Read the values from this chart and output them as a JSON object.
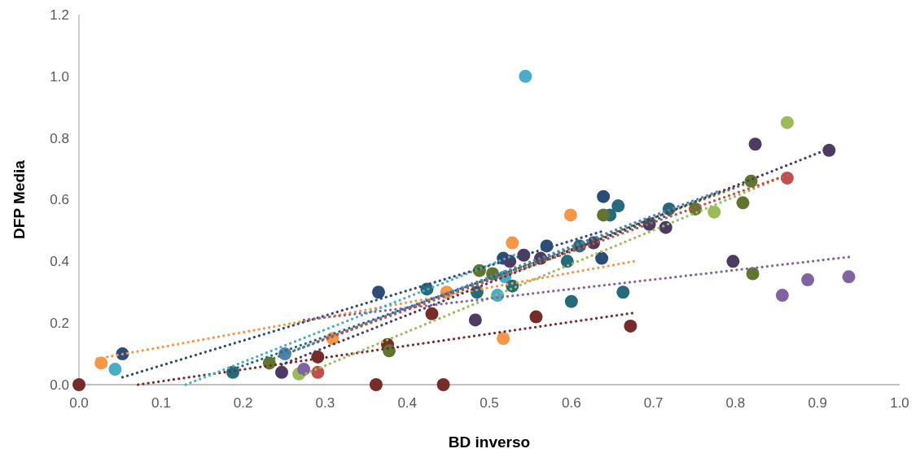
{
  "chart_data": {
    "type": "scatter",
    "xlabel": "BD inverso",
    "ylabel": "DFP Media",
    "marker": "circle",
    "grid": false,
    "xlim": [
      0,
      1
    ],
    "ylim": [
      0,
      1.2
    ],
    "xticks": [
      {
        "value": 0,
        "label": "0.0"
      },
      {
        "value": 0.1,
        "label": "0.1"
      },
      {
        "value": 0.2,
        "label": "0.2"
      },
      {
        "value": 0.3,
        "label": "0.3"
      },
      {
        "value": 0.4,
        "label": "0.4"
      },
      {
        "value": 0.5,
        "label": "0.5"
      },
      {
        "value": 0.6,
        "label": "0.6"
      },
      {
        "value": 0.7,
        "label": "0.7"
      },
      {
        "value": 0.8,
        "label": "0.8"
      },
      {
        "value": 0.9,
        "label": "0.9"
      },
      {
        "value": 1,
        "label": "1.0"
      }
    ],
    "yticks": [
      {
        "value": 0,
        "label": "0.0"
      },
      {
        "value": 0.2,
        "label": "0.2"
      },
      {
        "value": 0.4,
        "label": "0.4"
      },
      {
        "value": 0.6,
        "label": "0.6"
      },
      {
        "value": 0.8,
        "label": "0.8"
      },
      {
        "value": 1,
        "label": "1.0"
      },
      {
        "value": 1.2,
        "label": "1.2"
      }
    ],
    "series": [
      {
        "color": "#772c2a",
        "x": [
          0,
          0.291,
          0.362,
          0.376,
          0.43,
          0.444,
          0.557,
          0.672
        ],
        "values": [
          0,
          0.09,
          0,
          0.13,
          0.23,
          0,
          0.22,
          0.19
        ]
      },
      {
        "color": "#f79646",
        "x": [
          0.027,
          0.309,
          0.448,
          0.517,
          0.528,
          0.599
        ],
        "values": [
          0.07,
          0.15,
          0.3,
          0.15,
          0.46,
          0.55
        ]
      },
      {
        "color": "#4bacc6",
        "x": [
          0.044,
          0.51,
          0.519,
          0.544
        ],
        "values": [
          0.05,
          0.29,
          0.35,
          1.0
        ]
      },
      {
        "color": "#2c4d75",
        "x": [
          0.053,
          0.365,
          0.517,
          0.57,
          0.637,
          0.639
        ],
        "values": [
          0.1,
          0.3,
          0.41,
          0.45,
          0.41,
          0.61
        ]
      },
      {
        "color": "#276a7c",
        "x": [
          0.1875,
          0.424,
          0.485,
          0.528,
          0.595,
          0.6,
          0.61,
          0.647,
          0.657,
          0.663,
          0.719
        ],
        "values": [
          0.04,
          0.31,
          0.3,
          0.32,
          0.4,
          0.27,
          0.45,
          0.55,
          0.58,
          0.3,
          0.57
        ]
      },
      {
        "color": "#5f7530",
        "x": [
          0.232,
          0.378,
          0.488,
          0.504,
          0.639,
          0.751,
          0.809,
          0.819,
          0.821
        ],
        "values": [
          0.07,
          0.11,
          0.37,
          0.36,
          0.55,
          0.57,
          0.59,
          0.66,
          0.36
        ]
      },
      {
        "color": "#4d3b62",
        "x": [
          0.247,
          0.483,
          0.525,
          0.542,
          0.5625,
          0.627,
          0.695,
          0.715,
          0.797,
          0.824,
          0.914
        ],
        "values": [
          0.04,
          0.21,
          0.4,
          0.42,
          0.41,
          0.46,
          0.52,
          0.51,
          0.4,
          0.78,
          0.76
        ]
      },
      {
        "color": "#4f81bd",
        "x": [
          0.251
        ],
        "values": [
          0.1
        ]
      },
      {
        "color": "#9bbb59",
        "x": [
          0.268,
          0.774,
          0.863
        ],
        "values": [
          0.035,
          0.56,
          0.85
        ]
      },
      {
        "color": "#8064a2",
        "x": [
          0.274,
          0.857,
          0.888,
          0.938
        ],
        "values": [
          0.05,
          0.29,
          0.34,
          0.35
        ]
      },
      {
        "color": "#c0504d",
        "x": [
          0.291,
          0.863
        ],
        "values": [
          0.04,
          0.67
        ]
      },
      {
        "type": "line",
        "line_style": "dotted",
        "marker": "none",
        "color": "#772c2a",
        "x": [
          0.072,
          0.674
        ],
        "values": [
          0,
          0.232
        ]
      },
      {
        "type": "line",
        "line_style": "dotted",
        "marker": "none",
        "color": "#f79646",
        "x": [
          0.022,
          0.676
        ],
        "values": [
          0.084,
          0.4
        ]
      },
      {
        "type": "line",
        "line_style": "dotted",
        "marker": "none",
        "color": "#4bacc6",
        "x": [
          0.13,
          0.53
        ],
        "values": [
          0,
          0.42
        ]
      },
      {
        "type": "line",
        "line_style": "dotted",
        "marker": "none",
        "color": "#2c4d75",
        "x": [
          0.053,
          0.636
        ],
        "values": [
          0.024,
          0.496
        ]
      },
      {
        "type": "line",
        "line_style": "dotted",
        "marker": "none",
        "color": "#276a7c",
        "x": [
          0.1875,
          0.719
        ],
        "values": [
          0.05,
          0.55
        ]
      },
      {
        "type": "line",
        "line_style": "dotted",
        "marker": "none",
        "color": "#5f7530",
        "x": [
          0.232,
          0.821
        ],
        "values": [
          0.08,
          0.66
        ]
      },
      {
        "type": "line",
        "line_style": "dotted",
        "marker": "none",
        "color": "#4d3b62",
        "x": [
          0.247,
          0.914
        ],
        "values": [
          0.065,
          0.765
        ]
      },
      {
        "type": "line",
        "line_style": "dotted",
        "marker": "none",
        "color": "#4f81bd",
        "x": [
          0.251,
          0.777
        ],
        "values": [
          0.1,
          0.625
        ]
      },
      {
        "type": "line",
        "line_style": "dotted",
        "marker": "none",
        "color": "#9bbb59",
        "x": [
          0.271,
          0.863
        ],
        "values": [
          0.03,
          0.68
        ]
      },
      {
        "type": "line",
        "line_style": "dotted",
        "marker": "none",
        "color": "#8064a2",
        "x": [
          0.274,
          0.938
        ],
        "values": [
          0.21,
          0.414
        ]
      },
      {
        "type": "line",
        "line_style": "dotted",
        "marker": "none",
        "color": "#c0504d",
        "x": [
          0.291,
          0.863
        ],
        "values": [
          0.14,
          0.68
        ]
      }
    ]
  }
}
